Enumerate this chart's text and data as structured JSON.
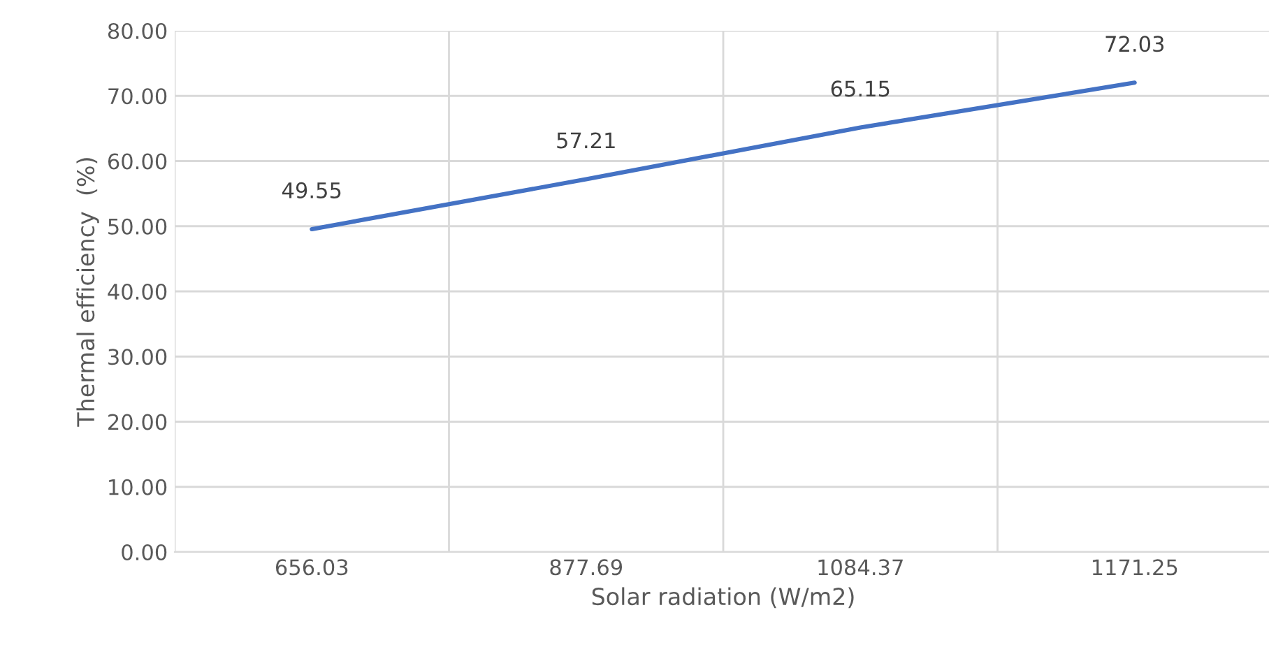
{
  "chart_data": {
    "type": "line",
    "xlabel": "Solar radiation (W/m2)",
    "ylabel": "Thermal efficiency  (%)",
    "categories": [
      "656.03",
      "877.69",
      "1084.37",
      "1171.25"
    ],
    "series": [
      {
        "color": "#4472c4",
        "values": [
          49.55,
          57.21,
          65.15,
          72.03
        ]
      }
    ],
    "ylim": [
      0,
      80
    ],
    "yticks": [
      {
        "value": 0,
        "label": "0.00"
      },
      {
        "value": 10,
        "label": "10.00"
      },
      {
        "value": 20,
        "label": "20.00"
      },
      {
        "value": 30,
        "label": "30.00"
      },
      {
        "value": 40,
        "label": "40.00"
      },
      {
        "value": 50,
        "label": "50.00"
      },
      {
        "value": 60,
        "label": "60.00"
      },
      {
        "value": 70,
        "label": "70.00"
      },
      {
        "value": 80,
        "label": "80.00"
      }
    ],
    "grid": true,
    "data_labels": true,
    "marker": "none",
    "line_style": "solid"
  }
}
